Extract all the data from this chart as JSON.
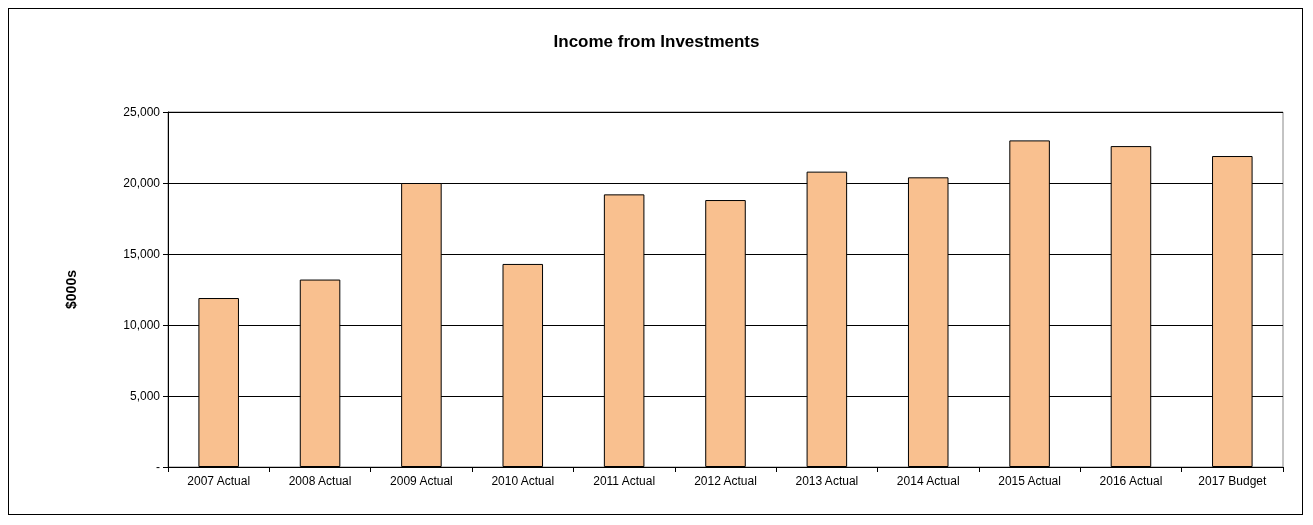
{
  "chart_data": {
    "type": "bar",
    "title": "Income from Investments",
    "ylabel": "$000s",
    "categories": [
      "2007 Actual",
      "2008 Actual",
      "2009 Actual",
      "2010 Actual",
      "2011 Actual",
      "2012 Actual",
      "2013 Actual",
      "2014 Actual",
      "2015 Actual",
      "2016 Actual",
      "2017 Budget"
    ],
    "values": [
      11900,
      13200,
      20000,
      14300,
      19200,
      18800,
      20800,
      20400,
      23000,
      22600,
      21900
    ],
    "color": "#f9c08f",
    "ylim": [
      0,
      25000
    ],
    "yticks": [
      {
        "value": 0,
        "label": "-"
      },
      {
        "value": 5000,
        "label": "5,000"
      },
      {
        "value": 10000,
        "label": "10,000"
      },
      {
        "value": 15000,
        "label": "15,000"
      },
      {
        "value": 20000,
        "label": "20,000"
      },
      {
        "value": 25000,
        "label": "25,000"
      }
    ],
    "grid": "y"
  }
}
